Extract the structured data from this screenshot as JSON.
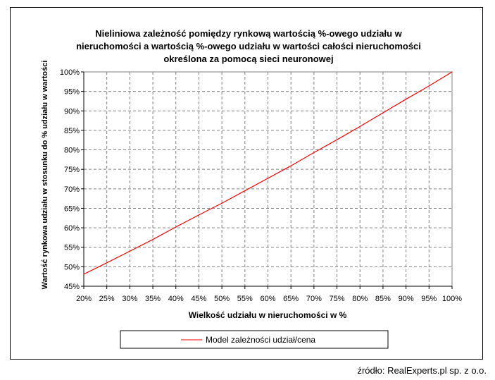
{
  "chart_data": {
    "type": "line",
    "title_lines": [
      "Nieliniowa zależność pomiędzy rynkową wartością %-owego udziału w",
      "nieruchomości a wartością %-owego udziału w wartości całości nieruchomości",
      "określona za pomocą sieci neuronowej"
    ],
    "xlabel": "Wielkość udziału w nieruchomości w %",
    "ylabel": "Wartość rynkowa udziału w stosunku do % udziału w wartości",
    "x_ticks": [
      "20%",
      "25%",
      "30%",
      "35%",
      "40%",
      "45%",
      "50%",
      "55%",
      "60%",
      "65%",
      "70%",
      "75%",
      "80%",
      "85%",
      "90%",
      "95%",
      "100%"
    ],
    "y_ticks": [
      "45%",
      "50%",
      "55%",
      "60%",
      "65%",
      "70%",
      "75%",
      "80%",
      "85%",
      "90%",
      "95%",
      "100%"
    ],
    "xlim": [
      20,
      100
    ],
    "ylim": [
      45,
      100
    ],
    "grid": true,
    "legend_position": "bottom",
    "series": [
      {
        "name": "Model zależności udział/cena",
        "color": "#ff0000",
        "x": [
          20,
          25,
          30,
          35,
          40,
          45,
          50,
          55,
          60,
          65,
          70,
          75,
          80,
          85,
          90,
          95,
          100
        ],
        "y": [
          48.1,
          51.0,
          54.0,
          57.0,
          60.2,
          63.3,
          66.3,
          69.5,
          72.7,
          75.9,
          79.3,
          82.6,
          86.0,
          89.5,
          93.0,
          96.4,
          100.0
        ]
      }
    ]
  },
  "source_note": "źródło: RealExperts.pl sp. z o.o."
}
